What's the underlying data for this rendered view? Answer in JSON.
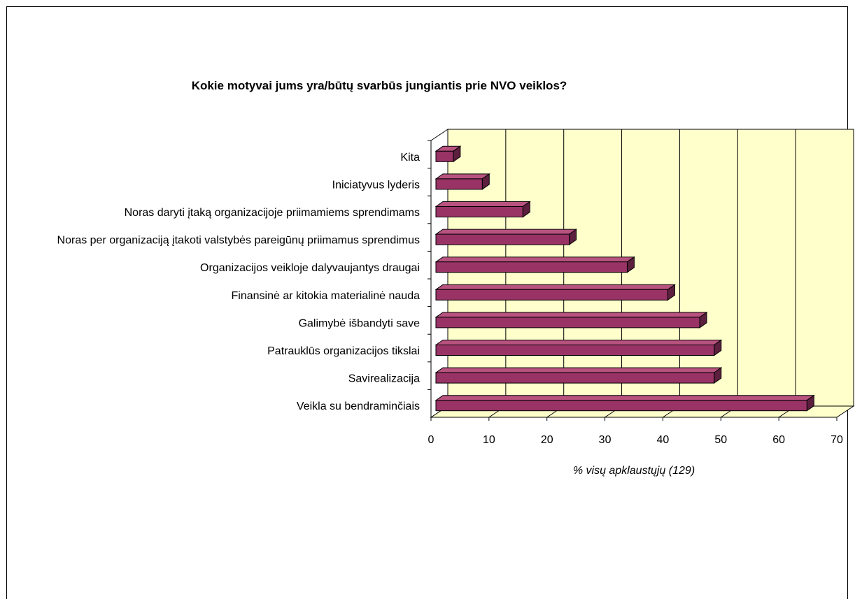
{
  "chart_data": {
    "type": "bar",
    "orientation": "horizontal",
    "title": "Kokie motyvai jums yra/būtų svarbūs jungiantis prie NVO veiklos?",
    "xlabel": "% visų apklaustųjų (129)",
    "ylabel": "",
    "xlim": [
      0,
      70
    ],
    "x_ticks": [
      0,
      10,
      20,
      30,
      40,
      50,
      60,
      70
    ],
    "grid": true,
    "legend": "none",
    "categories": [
      "Kita",
      "Iniciatyvus lyderis",
      "Noras daryti įtaką organizacijoje priimamiems sprendimams",
      "Noras per organizaciją įtakoti valstybės pareigūnų priimamus sprendimus",
      "Organizacijos veikloje dalyvaujantys draugai",
      "Finansinė ar kitokia materialinė nauda",
      "Galimybė išbandyti save",
      "Patrauklūs organizacijos tikslai",
      "Savirealizacija",
      "Veikla su bendraminčiais"
    ],
    "values": [
      3,
      8,
      15,
      23,
      33,
      40,
      45.5,
      48,
      48,
      64
    ],
    "colors": {
      "bar_front": "#993366",
      "bar_top": "#b8527f",
      "bar_side": "#5c1f3d",
      "plot_back": "#ffffcc",
      "plot_floor": "#ffffcc",
      "grid": "#000000"
    }
  }
}
